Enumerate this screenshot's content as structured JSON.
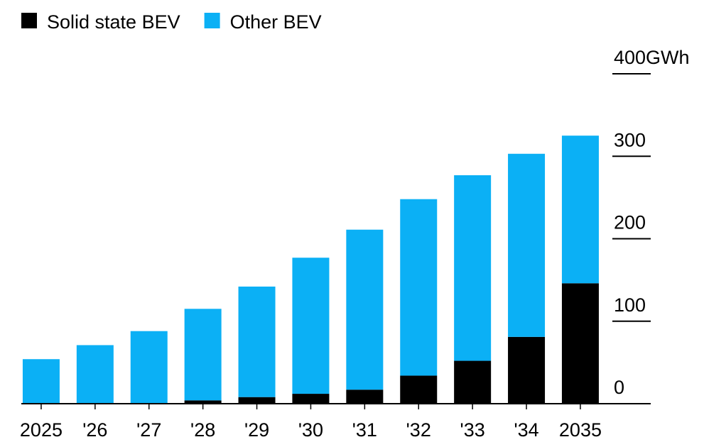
{
  "chart_data": {
    "type": "stacked-bar",
    "categories": [
      "2025",
      "'26",
      "'27",
      "'28",
      "'29",
      "'30",
      "'31",
      "'32",
      "'33",
      "'34",
      "2035"
    ],
    "series": [
      {
        "name": "Solid state BEV",
        "color": "#000000",
        "values": [
          0,
          0,
          0,
          4,
          8,
          12,
          17,
          34,
          52,
          81,
          146
        ]
      },
      {
        "name": "Other BEV",
        "color": "#0bb0f5",
        "values": [
          54,
          71,
          88,
          111,
          134,
          165,
          194,
          214,
          225,
          222,
          179
        ]
      }
    ],
    "ylim": [
      0,
      400
    ],
    "yticks": [
      0,
      100,
      200,
      300,
      {
        "value": 400,
        "label": "400GWh"
      }
    ],
    "legend": "top-left"
  }
}
